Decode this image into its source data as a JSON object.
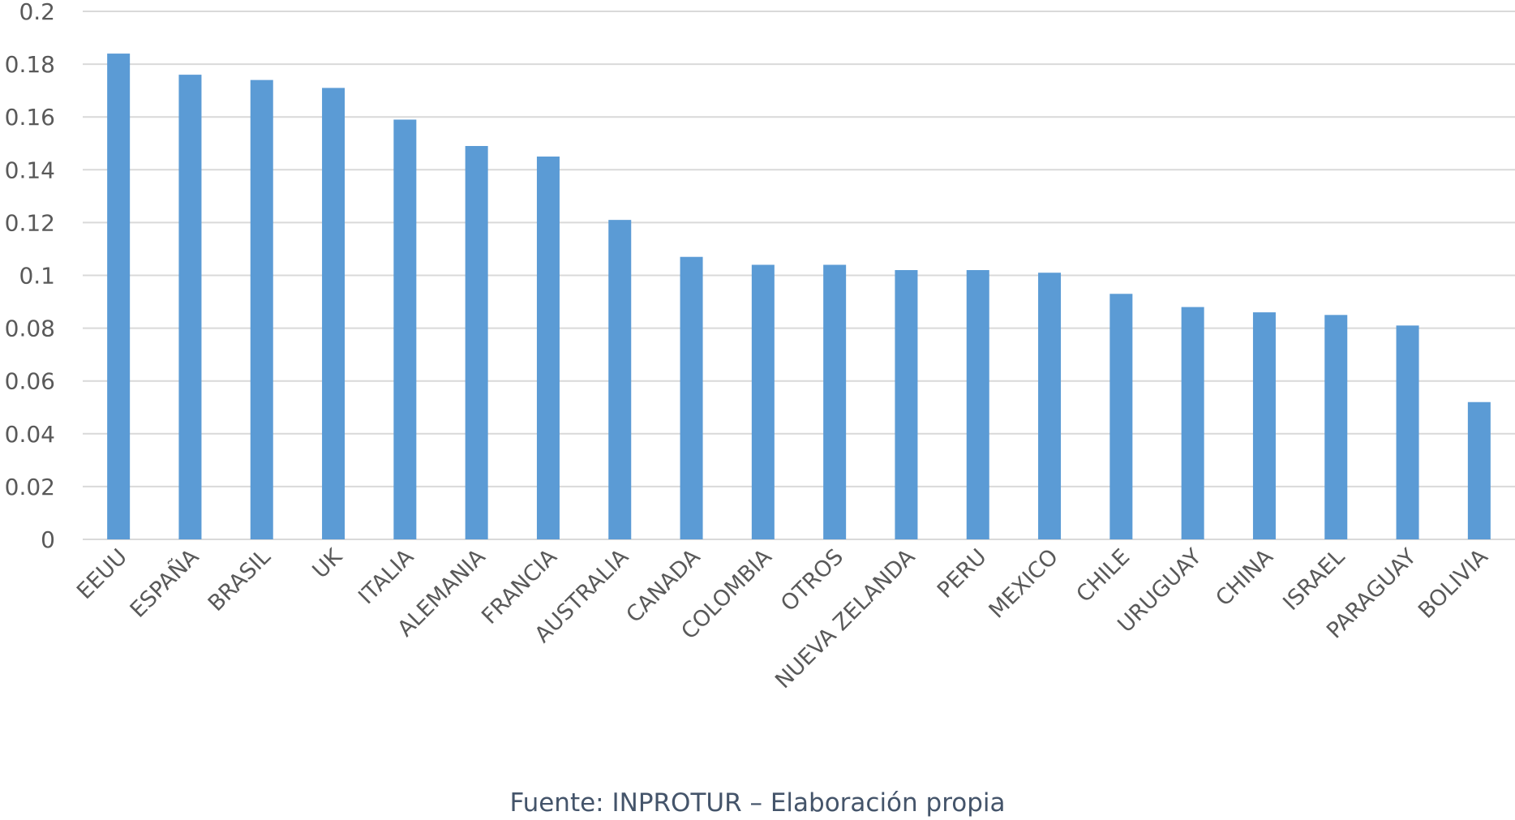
{
  "chart_data": {
    "type": "bar",
    "categories": [
      "EEUU",
      "ESPAÑA",
      "BRASIL",
      "UK",
      "ITALIA",
      "ALEMANIA",
      "FRANCIA",
      "AUSTRALIA",
      "CANADA",
      "COLOMBIA",
      "OTROS",
      "NUEVA ZELANDA",
      "PERU",
      "MEXICO",
      "CHILE",
      "URUGUAY",
      "CHINA",
      "ISRAEL",
      "PARAGUAY",
      "BOLIVIA"
    ],
    "values": [
      0.184,
      0.176,
      0.174,
      0.171,
      0.159,
      0.149,
      0.145,
      0.121,
      0.107,
      0.104,
      0.104,
      0.102,
      0.102,
      0.101,
      0.093,
      0.088,
      0.086,
      0.085,
      0.081,
      0.052
    ],
    "yticks": [
      "0",
      "0.02",
      "0.04",
      "0.06",
      "0.08",
      "0.1",
      "0.12",
      "0.14",
      "0.16",
      "0.18",
      "0.2"
    ],
    "ylim": [
      0,
      0.2
    ],
    "grid": true,
    "bar_color": "#5b9bd5"
  },
  "source_note": "Fuente: INPROTUR – Elaboración propia"
}
